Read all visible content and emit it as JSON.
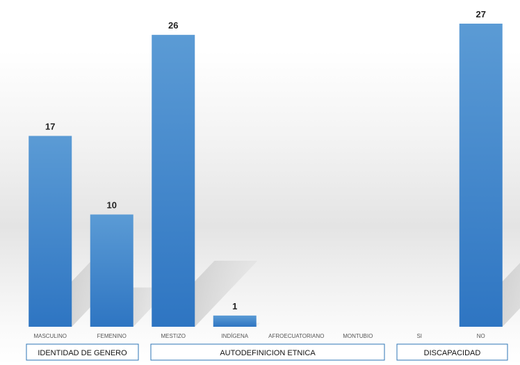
{
  "chart_data": {
    "type": "bar",
    "categories": [
      "MASCULINO",
      "FEMENINO",
      "MESTIZO",
      "INDÍGENA",
      "AFROECUATORIANO",
      "MONTUBIO",
      "SI",
      "NO"
    ],
    "values": [
      17,
      10,
      26,
      1,
      null,
      null,
      null,
      27
    ],
    "groups": [
      {
        "label": "IDENTIDAD DE GENERO",
        "categories": [
          "MASCULINO",
          "FEMENINO"
        ]
      },
      {
        "label": "AUTODEFINICION ETNICA",
        "categories": [
          "MESTIZO",
          "INDÍGENA",
          "AFROECUATORIANO",
          "MONTUBIO"
        ]
      },
      {
        "label": "DISCAPACIDAD",
        "categories": [
          "SI",
          "NO"
        ]
      }
    ],
    "ylim": [
      0,
      27
    ],
    "grid": false,
    "legend": "none",
    "colors": {
      "bar_top": "#5B9BD5",
      "bar_bottom": "#2E75C2",
      "group_border": "#2E75B6",
      "shadow": "#b8b8b8"
    }
  }
}
